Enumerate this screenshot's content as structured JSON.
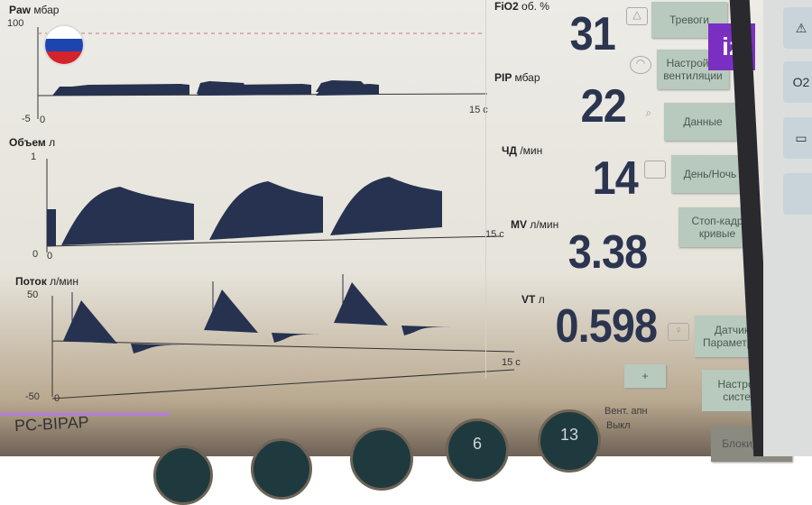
{
  "watermark": {
    "logo_text": "iz",
    "flag": "russia-flag"
  },
  "plots": {
    "paw": {
      "name": "Paw",
      "unit": "мбар",
      "ymax": "100",
      "ymin": "-5",
      "x0": "0",
      "xend": "15 c"
    },
    "volume": {
      "name": "Объем",
      "unit": "л",
      "ymax": "1",
      "ymin": "0",
      "x0": "0",
      "xend": "15 c"
    },
    "flow": {
      "name": "Поток",
      "unit": "л/мин",
      "ymax": "50",
      "ymin": "-50",
      "x0": "0",
      "xend": "15 c"
    }
  },
  "params": [
    {
      "name": "FiO2",
      "unit": "об. %",
      "value": "31"
    },
    {
      "name": "PIP",
      "unit": "мбар",
      "value": "22"
    },
    {
      "name": "ЧД",
      "unit": "/мин",
      "value": "14"
    },
    {
      "name": "MV",
      "unit": "л/мин",
      "value": "3.38"
    },
    {
      "name": "VT",
      "unit": "л",
      "value": "0.598"
    }
  ],
  "buttons": {
    "alarms": "Тревоги",
    "vent_settings": "Настройки вентиляции",
    "data": "Данные",
    "day_night": "День/Ночь",
    "freeze": "Стоп-кадр кривые",
    "sensors": "Датчики/ Параметры...",
    "system": "Настройка системы",
    "lock": "Блокировка",
    "plus": "+"
  },
  "mode": "PC-BIPAP",
  "apnea": {
    "label": "Вент. апн",
    "state": "Выкл"
  },
  "knobs": [
    "6",
    "13"
  ],
  "right_panel": {
    "o2_label": "O2"
  },
  "colors": {
    "waveform": "#26324f",
    "button": "#b8c9bd",
    "logo": "#7b2fc2"
  }
}
